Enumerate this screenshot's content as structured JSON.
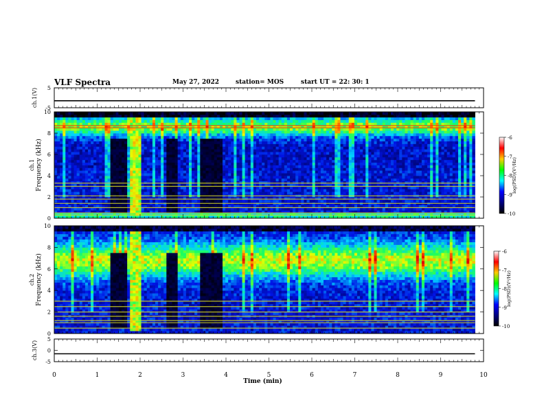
{
  "header": {
    "title": "VLF Spectra",
    "date": "May 27, 2022",
    "station": "station= MOS",
    "start_ut": "start  UT  =   22: 30: 1"
  },
  "colorbar": {
    "label": "log(PSD)(V²/Hz)",
    "ticks": [
      -6,
      -7,
      -8,
      -9,
      -10
    ],
    "colors": [
      "#ffffff",
      "#ff0000",
      "#ffcc00",
      "#00ff00",
      "#00ffff",
      "#0000ff",
      "#000080",
      "#000000"
    ]
  },
  "chart_data": [
    {
      "type": "line",
      "name": "ch1-voltage",
      "ylabel": "ch.1(V)",
      "ylim": [
        -5,
        5
      ],
      "yticks": [
        5,
        -5
      ],
      "xlim": [
        0,
        10
      ],
      "x": [
        0,
        1,
        2,
        3,
        4,
        5,
        6,
        7,
        8,
        9,
        9.8
      ],
      "y": [
        -1.5,
        -1.5,
        -1.5,
        -1.5,
        -1.5,
        -1.5,
        -1.5,
        -1.5,
        -1.5,
        -1.5,
        -1.5
      ]
    },
    {
      "type": "heatmap",
      "name": "ch1-spectrogram",
      "ylabel": "ch.1 Frequency  (kHz)",
      "ylim": [
        0,
        10
      ],
      "yticks": [
        0,
        2,
        4,
        6,
        8,
        10
      ],
      "xlim": [
        0,
        10
      ],
      "data_end_x": 9.8,
      "gaps": [
        [
          1.3,
          1.7
        ],
        [
          2.6,
          2.9
        ],
        [
          3.4,
          3.9
        ]
      ],
      "burst": [
        1.75,
        2.05
      ],
      "bands_khz": [
        0.3,
        0.5,
        1.0,
        1.4,
        1.8,
        2.1,
        3.0,
        3.3,
        8.5,
        8.7
      ]
    },
    {
      "type": "heatmap",
      "name": "ch2-spectrogram",
      "ylabel": "ch.2 Frequency  (kHz)",
      "ylim": [
        0,
        10
      ],
      "yticks": [
        0,
        2,
        4,
        6,
        8,
        10
      ],
      "xlim": [
        0,
        10
      ],
      "data_end_x": 9.8,
      "gaps": [
        [
          1.3,
          1.7
        ],
        [
          2.6,
          2.9
        ],
        [
          3.4,
          3.9
        ]
      ],
      "burst": [
        1.75,
        2.05
      ],
      "bands_khz": [
        0.5,
        1.0,
        1.2,
        1.6,
        2.0,
        2.5,
        3.0
      ]
    },
    {
      "type": "line",
      "name": "ch3-voltage",
      "ylabel": "ch.3(V)",
      "ylim": [
        -5,
        5
      ],
      "yticks": [
        5,
        0,
        -5
      ],
      "xlim": [
        0,
        10
      ],
      "x": [
        0,
        1,
        2,
        3,
        4,
        5,
        6,
        7,
        8,
        9,
        9.8
      ],
      "y": [
        -1.5,
        -1.5,
        -1.5,
        -1.5,
        -1.5,
        -1.5,
        -1.5,
        -1.5,
        -1.5,
        -1.5,
        -1.5
      ]
    }
  ],
  "x_axis": {
    "label": "Time  (min)",
    "ticks": [
      0,
      1,
      2,
      3,
      4,
      5,
      6,
      7,
      8,
      9,
      10
    ]
  }
}
